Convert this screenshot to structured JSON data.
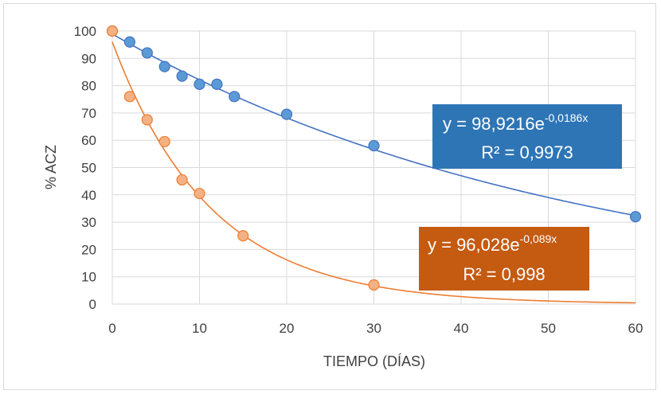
{
  "chart_data": {
    "type": "scatter",
    "title": "",
    "xlabel": "TIEMPO (DÍAS)",
    "ylabel": "% ACZ",
    "xlim": [
      0,
      60
    ],
    "ylim": [
      0,
      100
    ],
    "xticks": [
      "0",
      "10",
      "20",
      "30",
      "40",
      "50",
      "60"
    ],
    "yticks": [
      "0",
      "10",
      "20",
      "30",
      "40",
      "50",
      "60",
      "70",
      "80",
      "90",
      "100"
    ],
    "grid": true,
    "series": [
      {
        "color": "#5b9bd5",
        "line_color": "#4472c4",
        "x": [
          0,
          2,
          4,
          6,
          8,
          10,
          12,
          14,
          20,
          30,
          60
        ],
        "y": [
          100,
          96,
          92,
          87,
          83.5,
          80.5,
          80.5,
          76,
          69.5,
          58,
          32
        ],
        "trendline": {
          "type": "exponential",
          "a": 98.9216,
          "b": -0.0186
        },
        "equation": {
          "text": "y = 98,9216e",
          "exponent": "-0,0186x",
          "r2": "R² = 0,9973",
          "box_color": "#2e75b6"
        }
      },
      {
        "color": "#f4b183",
        "line_color": "#ed7d31",
        "x": [
          0,
          2,
          4,
          6,
          8,
          10,
          15,
          30
        ],
        "y": [
          100,
          76,
          67.5,
          59.5,
          45.5,
          40.5,
          25,
          7
        ],
        "trendline": {
          "type": "exponential",
          "a": 96.028,
          "b": -0.089
        },
        "equation": {
          "text": "y = 96,028e",
          "exponent": "-0,089x",
          "r2": "R² = 0,998",
          "box_color": "#c55a11"
        }
      }
    ]
  }
}
